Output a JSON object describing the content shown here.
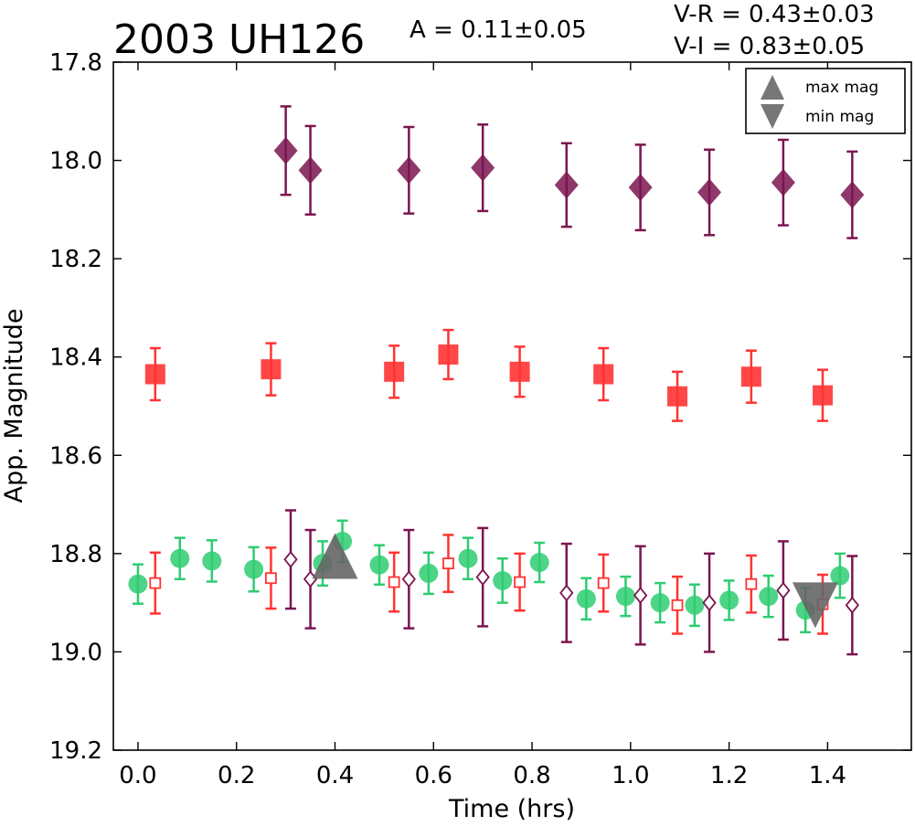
{
  "header": {
    "object_name": "2003 UH126",
    "amplitude": "A  = 0.11±0.05",
    "color_vr": "V-R = 0.43±0.03",
    "color_vi": "V-I  = 0.83±0.05"
  },
  "chart_data": {
    "type": "scatter",
    "xlabel": "Time (hrs)",
    "ylabel": "App. Magnitude",
    "xlim": [
      -0.05,
      1.57
    ],
    "ylim": [
      19.2,
      17.8
    ],
    "y_inverted": true,
    "xticks": [
      0.0,
      0.2,
      0.4,
      0.6,
      0.8,
      1.0,
      1.2,
      1.4
    ],
    "xtick_labels": [
      "0.0",
      "0.2",
      "0.4",
      "0.6",
      "0.8",
      "1.0",
      "1.2",
      "1.4"
    ],
    "yticks": [
      17.8,
      18.0,
      18.2,
      18.4,
      18.6,
      18.8,
      19.0,
      19.2
    ],
    "ytick_labels": [
      "17.8",
      "18.0",
      "18.2",
      "18.4",
      "18.6",
      "18.8",
      "19.0",
      "19.2"
    ],
    "legend": {
      "placement": "top-right",
      "entries": [
        "max mag",
        "min mag"
      ]
    },
    "colors": {
      "green": "#2ecc71",
      "red": "#ff3333",
      "purple": "#7b1550",
      "marker_gray": "#666666"
    },
    "series": [
      {
        "marker": "diamond-filled",
        "color": "#7b1550",
        "x": [
          0.3,
          0.35,
          0.55,
          0.7,
          0.87,
          1.02,
          1.16,
          1.31,
          1.45
        ],
        "y": [
          17.98,
          18.02,
          18.02,
          18.015,
          18.05,
          18.055,
          18.065,
          18.045,
          18.07
        ],
        "err": [
          0.09,
          0.09,
          0.088,
          0.088,
          0.085,
          0.087,
          0.087,
          0.087,
          0.088
        ]
      },
      {
        "marker": "square-filled",
        "color": "#ff3333",
        "x": [
          0.035,
          0.27,
          0.52,
          0.63,
          0.775,
          0.945,
          1.095,
          1.245,
          1.39
        ],
        "y": [
          18.435,
          18.425,
          18.43,
          18.395,
          18.43,
          18.435,
          18.48,
          18.44,
          18.478
        ],
        "err": [
          0.053,
          0.053,
          0.053,
          0.05,
          0.051,
          0.053,
          0.05,
          0.053,
          0.052
        ]
      },
      {
        "marker": "circle-filled",
        "color": "#2ecc71",
        "x": [
          0.0,
          0.085,
          0.15,
          0.235,
          0.375,
          0.415,
          0.49,
          0.59,
          0.67,
          0.74,
          0.815,
          0.91,
          0.99,
          1.06,
          1.13,
          1.2,
          1.28,
          1.355,
          1.425
        ],
        "y": [
          18.862,
          18.81,
          18.815,
          18.832,
          18.82,
          18.775,
          18.823,
          18.84,
          18.81,
          18.855,
          18.818,
          18.892,
          18.887,
          18.9,
          18.905,
          18.895,
          18.887,
          18.915,
          18.845
        ],
        "err": [
          0.04,
          0.042,
          0.042,
          0.045,
          0.045,
          0.042,
          0.04,
          0.042,
          0.042,
          0.045,
          0.04,
          0.042,
          0.04,
          0.04,
          0.042,
          0.04,
          0.042,
          0.045,
          0.045
        ]
      },
      {
        "marker": "square-open",
        "color": "#ff3333",
        "x": [
          0.035,
          0.27,
          0.52,
          0.63,
          0.775,
          0.945,
          1.095,
          1.245,
          1.39
        ],
        "y": [
          18.86,
          18.85,
          18.858,
          18.82,
          18.858,
          18.86,
          18.905,
          18.862,
          18.903
        ],
        "err": [
          0.062,
          0.062,
          0.06,
          0.058,
          0.058,
          0.058,
          0.058,
          0.058,
          0.06
        ]
      },
      {
        "marker": "diamond-open",
        "color": "#7b1550",
        "x": [
          0.31,
          0.35,
          0.55,
          0.7,
          0.87,
          1.02,
          1.16,
          1.31,
          1.45
        ],
        "y": [
          18.812,
          18.852,
          18.852,
          18.848,
          18.88,
          18.885,
          18.9,
          18.875,
          18.905
        ],
        "err": [
          0.1,
          0.1,
          0.1,
          0.1,
          0.1,
          0.1,
          0.1,
          0.1,
          0.1
        ]
      }
    ],
    "markers": [
      {
        "label": "max mag",
        "shape": "triangle-up",
        "x": 0.4,
        "y": 18.805
      },
      {
        "label": "min mag",
        "shape": "triangle-down",
        "x": 1.375,
        "y": 18.905
      }
    ]
  }
}
